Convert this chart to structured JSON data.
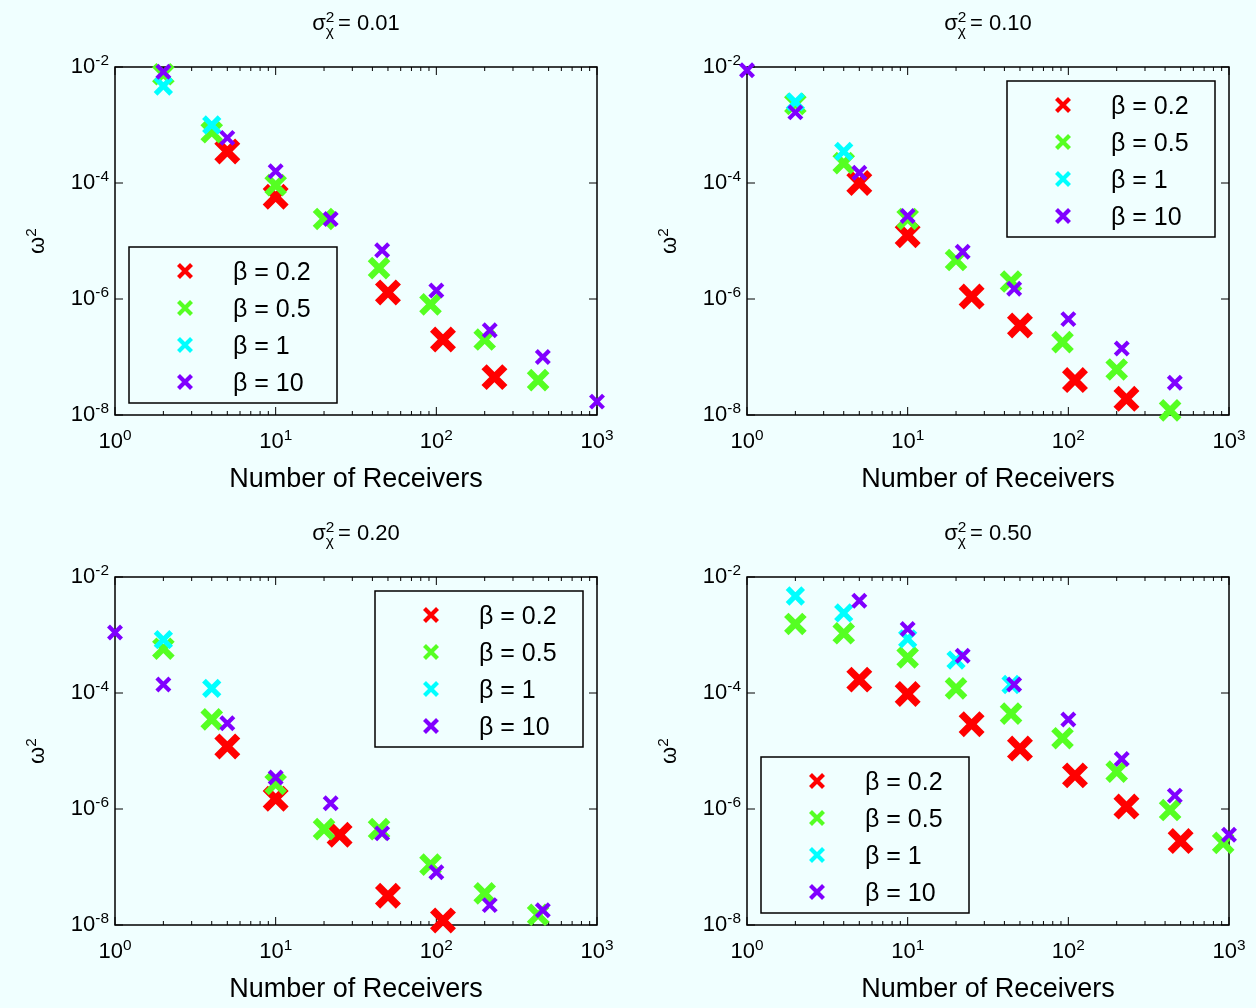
{
  "chart_data": [
    {
      "type": "scatter",
      "title": "σ$^{2}$$_{χ}$ = 0.01",
      "xlabel": "Number of Receivers",
      "ylabel": "ω$^{2}$",
      "log": "xy",
      "xlim": [
        1,
        1000
      ],
      "ylim": [
        1e-08,
        0.01
      ],
      "xticks": [
        {
          "value": 1,
          "label": "10$^{0}$"
        },
        {
          "value": 10,
          "label": "10$^{1}$"
        },
        {
          "value": 100,
          "label": "10$^{2}$"
        },
        {
          "value": 1000,
          "label": "10$^{3}$"
        }
      ],
      "yticks": [
        {
          "value": 1e-08,
          "label": "10$^{-8}$"
        },
        {
          "value": 1e-06,
          "label": "10$^{-6}$"
        },
        {
          "value": 0.0001,
          "label": "10$^{-4}$"
        },
        {
          "value": 0.01,
          "label": "10$^{-2}$"
        }
      ],
      "grid": false,
      "legend": "bottom left",
      "marker": "cross",
      "series": [
        {
          "name": "β = 0.2",
          "color": "#ff0000",
          "x": [
            5,
            10,
            50,
            110,
            230
          ],
          "values": [
            0.00035,
            5.8e-05,
            1.3e-06,
            2e-07,
            4.5e-08
          ]
        },
        {
          "name": "β = 0.5",
          "color": "#55ff22",
          "x": [
            2,
            4,
            10,
            20,
            44,
            92,
            200,
            430
          ],
          "values": [
            0.0075,
            0.00075,
            9.2e-05,
            2.4e-05,
            3.4e-06,
            8.1e-07,
            2e-07,
            4e-08
          ]
        },
        {
          "name": "β = 1",
          "color": "#00ffff",
          "x": [
            2,
            4
          ],
          "values": [
            0.0047,
            0.001
          ]
        },
        {
          "name": "β = 10",
          "color": "#8000ff",
          "x": [
            2,
            5,
            10,
            22,
            46,
            100,
            215,
            460,
            1000
          ],
          "values": [
            0.0083,
            0.0006,
            0.00016,
            2.4e-05,
            6.9e-06,
            1.4e-06,
            2.9e-07,
            1e-07,
            1.7e-08
          ]
        }
      ]
    },
    {
      "type": "scatter",
      "title": "σ$^{2}$$_{χ}$ = 0.10",
      "xlabel": "Number of Receivers",
      "ylabel": "ω$^{2}$",
      "log": "xy",
      "xlim": [
        1,
        1000
      ],
      "ylim": [
        1e-08,
        0.01
      ],
      "xticks": [
        {
          "value": 1,
          "label": "10$^{0}$"
        },
        {
          "value": 10,
          "label": "10$^{1}$"
        },
        {
          "value": 100,
          "label": "10$^{2}$"
        },
        {
          "value": 1000,
          "label": "10$^{3}$"
        }
      ],
      "yticks": [
        {
          "value": 1e-08,
          "label": "10$^{-8}$"
        },
        {
          "value": 1e-06,
          "label": "10$^{-6}$"
        },
        {
          "value": 0.0001,
          "label": "10$^{-4}$"
        },
        {
          "value": 0.01,
          "label": "10$^{-2}$"
        }
      ],
      "grid": false,
      "legend": "top right",
      "marker": "cross",
      "series": [
        {
          "name": "β = 0.2",
          "color": "#ff0000",
          "x": [
            5,
            10,
            25,
            50,
            110,
            230
          ],
          "values": [
            0.0001,
            1.26e-05,
            1.1e-06,
            3.5e-07,
            4e-08,
            1.9e-08
          ]
        },
        {
          "name": "β = 0.5",
          "color": "#55ff22",
          "x": [
            2,
            4,
            10,
            20,
            44,
            92,
            200,
            430
          ],
          "values": [
            0.0023,
            0.00022,
            2.4e-05,
            4.7e-06,
            2e-06,
            1.8e-07,
            6.1e-08,
            1.2e-08
          ]
        },
        {
          "name": "β = 1",
          "color": "#00ffff",
          "x": [
            2,
            4
          ],
          "values": [
            0.0025,
            0.00035
          ]
        },
        {
          "name": "β = 10",
          "color": "#8000ff",
          "x": [
            1,
            2,
            5,
            10,
            22,
            46,
            100,
            215,
            460
          ],
          "values": [
            0.0088,
            0.00165,
            0.00015,
            2.7e-05,
            6.5e-06,
            1.5e-06,
            4.5e-07,
            1.4e-07,
            3.6e-08
          ]
        }
      ]
    },
    {
      "type": "scatter",
      "title": "σ$^{2}$$_{χ}$ = 0.20",
      "xlabel": "Number of Receivers",
      "ylabel": "ω$^{2}$",
      "log": "xy",
      "xlim": [
        1,
        1000
      ],
      "ylim": [
        1e-08,
        0.01
      ],
      "xticks": [
        {
          "value": 1,
          "label": "10$^{0}$"
        },
        {
          "value": 10,
          "label": "10$^{1}$"
        },
        {
          "value": 100,
          "label": "10$^{2}$"
        },
        {
          "value": 1000,
          "label": "10$^{3}$"
        }
      ],
      "yticks": [
        {
          "value": 1e-08,
          "label": "10$^{-8}$"
        },
        {
          "value": 1e-06,
          "label": "10$^{-6}$"
        },
        {
          "value": 0.0001,
          "label": "10$^{-4}$"
        },
        {
          "value": 0.01,
          "label": "10$^{-2}$"
        }
      ],
      "grid": false,
      "legend": "top right",
      "marker": "cross",
      "series": [
        {
          "name": "β = 0.2",
          "color": "#ff0000",
          "x": [
            5,
            10,
            25,
            50,
            110
          ],
          "values": [
            1.2e-05,
            1.5e-06,
            3.6e-07,
            3.2e-08,
            1.2e-08
          ]
        },
        {
          "name": "β = 0.5",
          "color": "#55ff22",
          "x": [
            2,
            4,
            10,
            20,
            44,
            92,
            200,
            430
          ],
          "values": [
            0.00058,
            3.5e-05,
            2.7e-06,
            4.5e-07,
            4.5e-07,
            1.1e-07,
            3.5e-08,
            1.5e-08
          ]
        },
        {
          "name": "β = 1",
          "color": "#00ffff",
          "x": [
            2,
            4
          ],
          "values": [
            0.00083,
            0.00012
          ]
        },
        {
          "name": "β = 10",
          "color": "#8000ff",
          "x": [
            1,
            2,
            5,
            10,
            22,
            46,
            100,
            215,
            460
          ],
          "values": [
            0.0011,
            0.00014,
            3e-05,
            3.5e-06,
            1.26e-06,
            3.8e-07,
            8.1e-08,
            2.2e-08,
            1.8e-08
          ]
        }
      ]
    },
    {
      "type": "scatter",
      "title": "σ$^{2}$$_{χ}$ = 0.50",
      "xlabel": "Number of Receivers",
      "ylabel": "ω$^{2}$",
      "log": "xy",
      "xlim": [
        1,
        1000
      ],
      "ylim": [
        1e-08,
        0.01
      ],
      "xticks": [
        {
          "value": 1,
          "label": "10$^{0}$"
        },
        {
          "value": 10,
          "label": "10$^{1}$"
        },
        {
          "value": 100,
          "label": "10$^{2}$"
        },
        {
          "value": 1000,
          "label": "10$^{3}$"
        }
      ],
      "yticks": [
        {
          "value": 1e-08,
          "label": "10$^{-8}$"
        },
        {
          "value": 1e-06,
          "label": "10$^{-6}$"
        },
        {
          "value": 0.0001,
          "label": "10$^{-4}$"
        },
        {
          "value": 0.01,
          "label": "10$^{-2}$"
        }
      ],
      "grid": false,
      "legend": "bottom left",
      "marker": "cross",
      "series": [
        {
          "name": "β = 0.2",
          "color": "#ff0000",
          "x": [
            5,
            10,
            25,
            50,
            110,
            230,
            500
          ],
          "values": [
            0.00017,
            9.6e-05,
            2.9e-05,
            1.1e-05,
            3.8e-06,
            1.1e-06,
            2.8e-07
          ]
        },
        {
          "name": "β = 0.5",
          "color": "#55ff22",
          "x": [
            2,
            4,
            10,
            20,
            44,
            92,
            200,
            430,
            920
          ],
          "values": [
            0.00155,
            0.00107,
            0.00041,
            0.00012,
            4.4e-05,
            1.66e-05,
            4.4e-06,
            9.6e-07,
            2.6e-07
          ]
        },
        {
          "name": "β = 1",
          "color": "#00ffff",
          "x": [
            2,
            4,
            10,
            20,
            44
          ],
          "values": [
            0.0047,
            0.0024,
            0.00086,
            0.00037,
            0.00014
          ]
        },
        {
          "name": "β = 10",
          "color": "#8000ff",
          "x": [
            5,
            10,
            22,
            46,
            100,
            215,
            460,
            1000
          ],
          "values": [
            0.0039,
            0.00127,
            0.00044,
            0.00014,
            3.5e-05,
            7.3e-06,
            1.7e-06,
            3.6e-07
          ]
        }
      ]
    }
  ]
}
